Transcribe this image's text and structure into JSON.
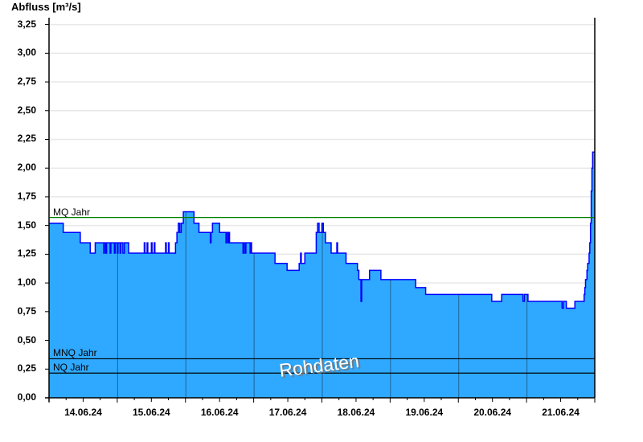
{
  "chart_data": {
    "type": "area",
    "ylabel": "Abfluss [m³/s]",
    "ylim": [
      0,
      3.31
    ],
    "yticks": [
      "0,00",
      "0,25",
      "0,50",
      "0,75",
      "1,00",
      "1,25",
      "1,50",
      "1,75",
      "2,00",
      "2,25",
      "2,50",
      "2,75",
      "3,00",
      "3,25"
    ],
    "ytick_values": [
      0,
      0.25,
      0.5,
      0.75,
      1,
      1.25,
      1.5,
      1.75,
      2,
      2.25,
      2.5,
      2.75,
      3,
      3.25
    ],
    "xlim": [
      "2024-06-14 00:00",
      "2024-06-21 23:45"
    ],
    "xticks": [
      "14.06.24",
      "15.06.24",
      "16.06.24",
      "17.06.24",
      "18.06.24",
      "19.06.24",
      "20.06.24",
      "21.06.24"
    ],
    "grid": true,
    "colors": {
      "fill": "#2ea9ff",
      "line": "#0000ff",
      "grid": "#e8e8e8",
      "day_line": "#1e6496",
      "mq": "#008000",
      "mnq": "#000000",
      "nq": "#000000"
    },
    "reference_lines": [
      {
        "label": "MQ Jahr",
        "value": 1.57
      },
      {
        "label": "MNQ Jahr",
        "value": 0.34
      },
      {
        "label": "NQ Jahr",
        "value": 0.215
      }
    ],
    "watermark": "Rohdaten",
    "series": [
      {
        "step": true,
        "points": [
          [
            "2024-06-14 00:00",
            1.52
          ],
          [
            "2024-06-14 05:00",
            1.44
          ],
          [
            "2024-06-14 11:00",
            1.35
          ],
          [
            "2024-06-14 14:30",
            1.26
          ],
          [
            "2024-06-14 16:15",
            1.35
          ],
          [
            "2024-06-14 19:15",
            1.26
          ],
          [
            "2024-06-14 19:30",
            1.35
          ],
          [
            "2024-06-14 20:00",
            1.26
          ],
          [
            "2024-06-14 20:15",
            1.35
          ],
          [
            "2024-06-14 21:30",
            1.26
          ],
          [
            "2024-06-14 21:45",
            1.35
          ],
          [
            "2024-06-14 23:00",
            1.26
          ],
          [
            "2024-06-14 23:15",
            1.35
          ],
          [
            "2024-06-15 00:00",
            1.26
          ],
          [
            "2024-06-15 00:15",
            1.35
          ],
          [
            "2024-06-15 01:00",
            1.26
          ],
          [
            "2024-06-15 01:15",
            1.35
          ],
          [
            "2024-06-15 02:00",
            1.26
          ],
          [
            "2024-06-15 02:30",
            1.35
          ],
          [
            "2024-06-15 04:00",
            1.26
          ],
          [
            "2024-06-15 09:30",
            1.35
          ],
          [
            "2024-06-15 09:45",
            1.26
          ],
          [
            "2024-06-15 10:30",
            1.35
          ],
          [
            "2024-06-15 10:45",
            1.26
          ],
          [
            "2024-06-15 12:00",
            1.35
          ],
          [
            "2024-06-15 12:15",
            1.26
          ],
          [
            "2024-06-15 13:00",
            1.35
          ],
          [
            "2024-06-15 13:15",
            1.26
          ],
          [
            "2024-06-15 17:00",
            1.35
          ],
          [
            "2024-06-15 17:15",
            1.26
          ],
          [
            "2024-06-15 18:00",
            1.35
          ],
          [
            "2024-06-15 18:15",
            1.26
          ],
          [
            "2024-06-15 20:30",
            1.35
          ],
          [
            "2024-06-15 21:00",
            1.44
          ],
          [
            "2024-06-15 21:30",
            1.52
          ],
          [
            "2024-06-15 22:00",
            1.44
          ],
          [
            "2024-06-15 22:30",
            1.52
          ],
          [
            "2024-06-15 23:15",
            1.62
          ],
          [
            "2024-06-16 03:00",
            1.52
          ],
          [
            "2024-06-16 04:45",
            1.44
          ],
          [
            "2024-06-16 08:45",
            1.35
          ],
          [
            "2024-06-16 09:00",
            1.44
          ],
          [
            "2024-06-16 09:30",
            1.52
          ],
          [
            "2024-06-16 12:00",
            1.44
          ],
          [
            "2024-06-16 14:15",
            1.35
          ],
          [
            "2024-06-16 14:30",
            1.44
          ],
          [
            "2024-06-16 15:00",
            1.35
          ],
          [
            "2024-06-16 15:15",
            1.44
          ],
          [
            "2024-06-16 15:30",
            1.35
          ],
          [
            "2024-06-16 20:15",
            1.26
          ],
          [
            "2024-06-16 20:30",
            1.35
          ],
          [
            "2024-06-16 21:00",
            1.26
          ],
          [
            "2024-06-16 21:15",
            1.35
          ],
          [
            "2024-06-16 22:45",
            1.26
          ],
          [
            "2024-06-16 23:00",
            1.35
          ],
          [
            "2024-06-16 23:15",
            1.26
          ],
          [
            "2024-06-17 07:30",
            1.17
          ],
          [
            "2024-06-17 11:45",
            1.11
          ],
          [
            "2024-06-17 16:00",
            1.17
          ],
          [
            "2024-06-17 16:30",
            1.26
          ],
          [
            "2024-06-17 16:45",
            1.17
          ],
          [
            "2024-06-17 18:00",
            1.26
          ],
          [
            "2024-06-17 22:00",
            1.44
          ],
          [
            "2024-06-17 22:30",
            1.52
          ],
          [
            "2024-06-17 23:00",
            1.44
          ],
          [
            "2024-06-18 00:00",
            1.52
          ],
          [
            "2024-06-18 00:30",
            1.44
          ],
          [
            "2024-06-18 01:15",
            1.35
          ],
          [
            "2024-06-18 03:15",
            1.26
          ],
          [
            "2024-06-18 05:15",
            1.35
          ],
          [
            "2024-06-18 05:30",
            1.26
          ],
          [
            "2024-06-18 08:30",
            1.17
          ],
          [
            "2024-06-18 12:30",
            1.11
          ],
          [
            "2024-06-18 13:00",
            1.03
          ],
          [
            "2024-06-18 13:45",
            0.84
          ],
          [
            "2024-06-18 14:00",
            1.03
          ],
          [
            "2024-06-18 16:45",
            1.11
          ],
          [
            "2024-06-18 20:45",
            1.03
          ],
          [
            "2024-06-19 09:00",
            0.96
          ],
          [
            "2024-06-19 12:30",
            0.9
          ],
          [
            "2024-06-20 11:45",
            0.84
          ],
          [
            "2024-06-20 15:15",
            0.9
          ],
          [
            "2024-06-20 22:45",
            0.84
          ],
          [
            "2024-06-20 23:15",
            0.9
          ],
          [
            "2024-06-21 00:30",
            0.84
          ],
          [
            "2024-06-21 12:30",
            0.78
          ],
          [
            "2024-06-21 13:00",
            0.84
          ],
          [
            "2024-06-21 14:00",
            0.78
          ],
          [
            "2024-06-21 17:00",
            0.84
          ],
          [
            "2024-06-21 20:15",
            0.9
          ],
          [
            "2024-06-21 20:30",
            0.96
          ],
          [
            "2024-06-21 20:45",
            1.03
          ],
          [
            "2024-06-21 21:15",
            1.11
          ],
          [
            "2024-06-21 21:30",
            1.17
          ],
          [
            "2024-06-21 22:00",
            1.26
          ],
          [
            "2024-06-21 22:15",
            1.35
          ],
          [
            "2024-06-21 22:30",
            1.52
          ],
          [
            "2024-06-21 22:45",
            1.8
          ],
          [
            "2024-06-21 23:00",
            2.0
          ],
          [
            "2024-06-21 23:15",
            2.14
          ],
          [
            "2024-06-21 23:45",
            2.14
          ]
        ]
      }
    ]
  }
}
